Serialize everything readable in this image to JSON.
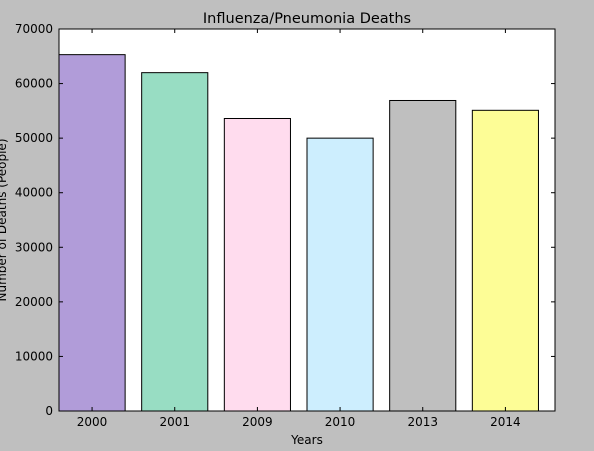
{
  "chart_data": {
    "type": "bar",
    "title": "Influenza/Pneumonia Deaths",
    "xlabel": "Years",
    "ylabel": "Number of Deaths (People)",
    "categories": [
      "2000",
      "2001",
      "2009",
      "2010",
      "2013",
      "2014"
    ],
    "values": [
      65300,
      62000,
      53600,
      50000,
      56900,
      55100
    ],
    "bar_colors": [
      "#b19cd9",
      "#98ddc3",
      "#ffdcee",
      "#cdeefe",
      "#bfbfbf",
      "#fdfd96"
    ],
    "ylim": [
      0,
      70000
    ],
    "yticks": [
      "0",
      "10000",
      "20000",
      "30000",
      "40000",
      "50000",
      "60000",
      "70000"
    ],
    "grid": false,
    "legend": "none",
    "plot_background": "#ffffff",
    "figure_background": "#bfbfbf"
  }
}
